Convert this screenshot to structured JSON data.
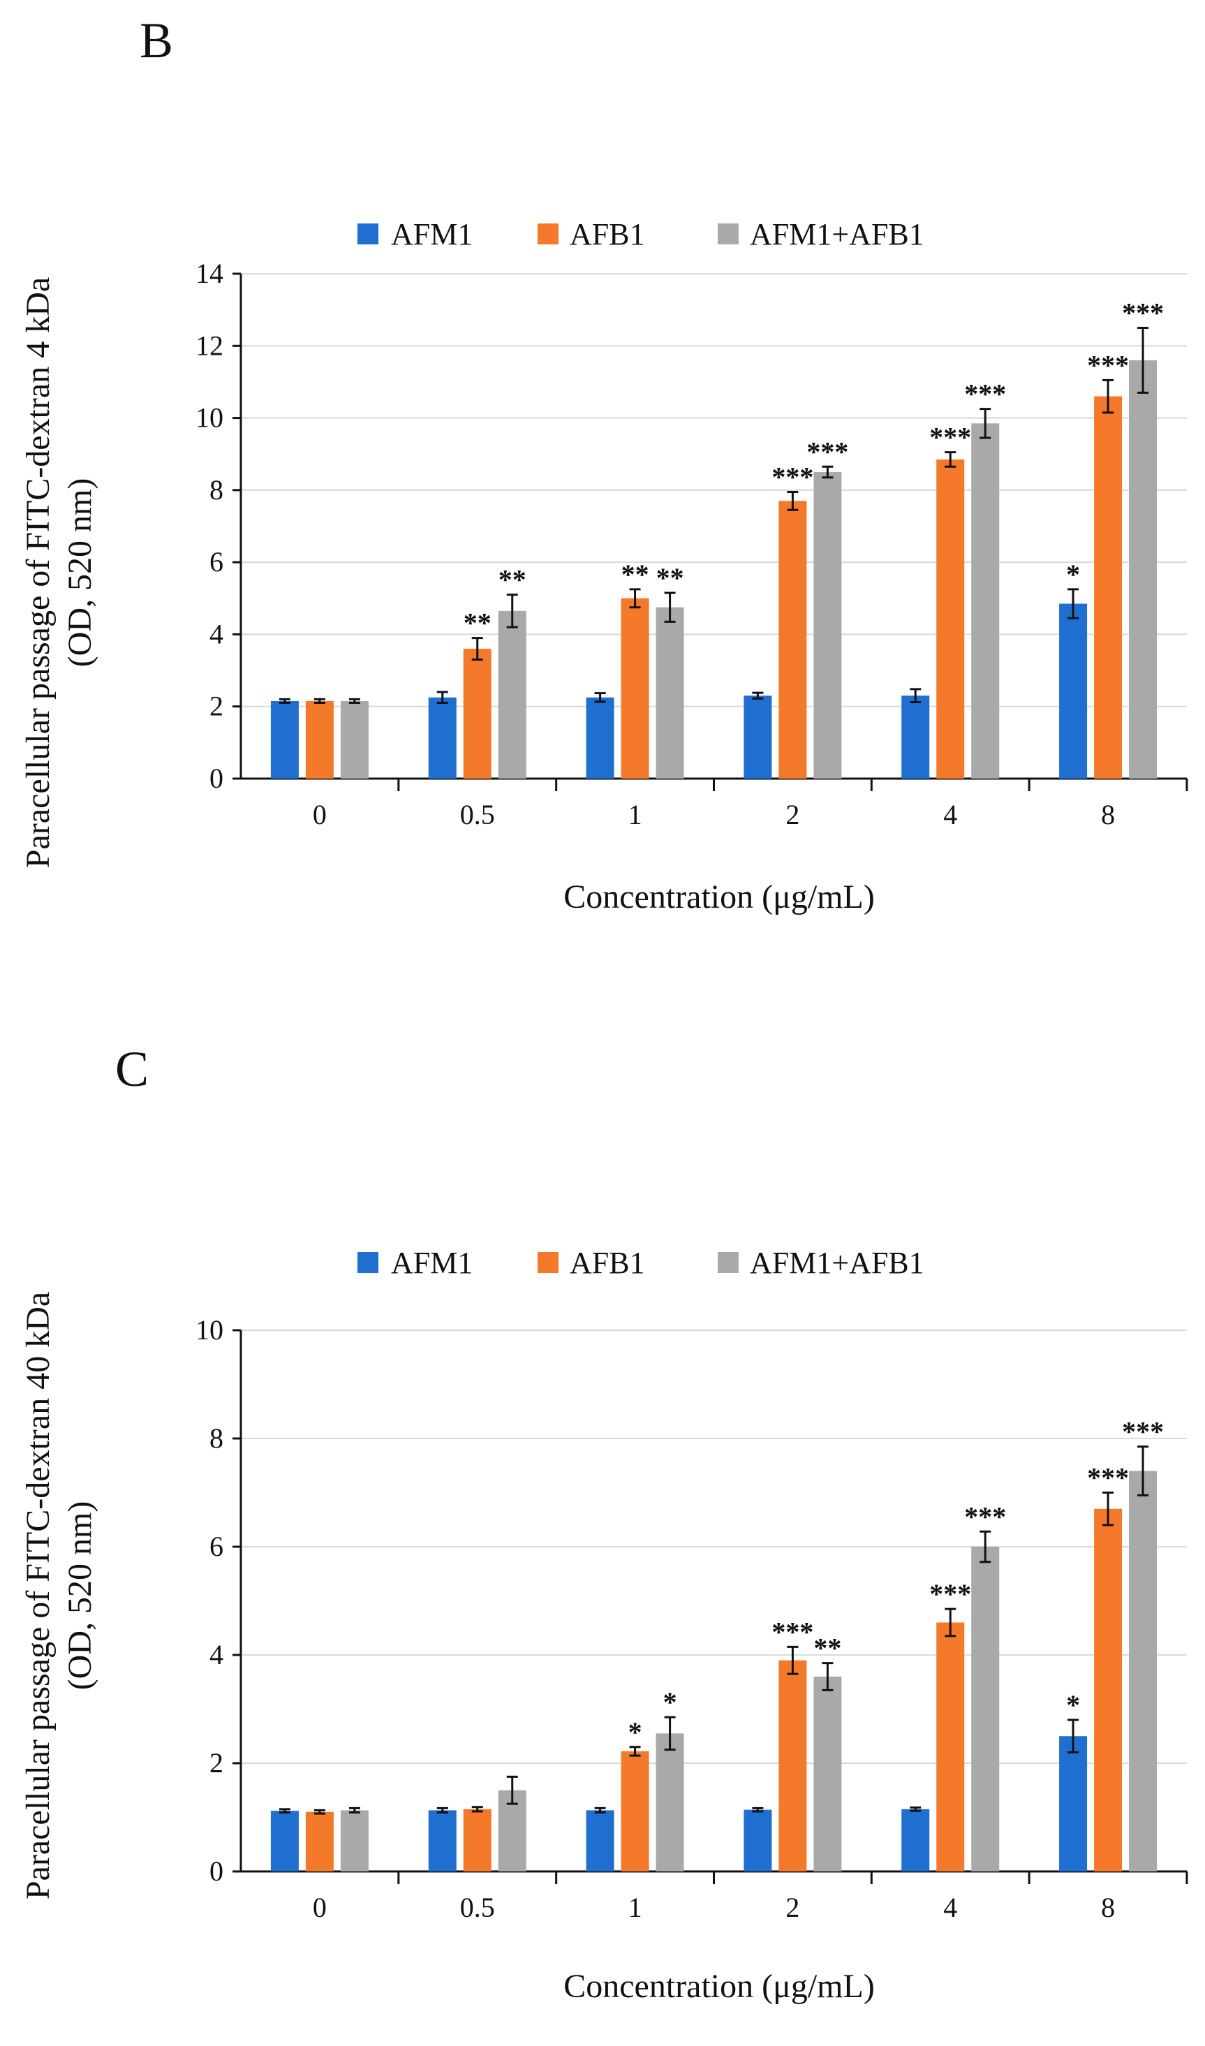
{
  "colors": {
    "AFM1": "#1f6fd1",
    "AFB1": "#f5792a",
    "AFM1+AFB1": "#a9a9a9"
  },
  "chart_data": [
    {
      "type": "bar",
      "panel_label": "B",
      "title": "",
      "legend": [
        "AFM1",
        "AFB1",
        "AFM1+AFB1"
      ],
      "legend_position": "top",
      "categories": [
        "0",
        "0.5",
        "1",
        "2",
        "4",
        "8"
      ],
      "xlabel": "Concentration  (μg/mL)",
      "ylabel_line1": "Paracellular  passage  of FITC-dextran  4 kDa",
      "ylabel_line2": "(OD, 520 nm)",
      "ylim": [
        0,
        14
      ],
      "yticks": [
        "0",
        "2",
        "4",
        "6",
        "8",
        "10",
        "12",
        "14"
      ],
      "grid": true,
      "series": [
        {
          "name": "AFM1",
          "values": [
            2.15,
            2.25,
            2.25,
            2.3,
            2.3,
            4.85
          ],
          "errors": [
            0.05,
            0.15,
            0.12,
            0.08,
            0.18,
            0.4
          ],
          "significance": [
            "",
            "",
            "",
            "",
            "",
            "*"
          ]
        },
        {
          "name": "AFB1",
          "values": [
            2.15,
            3.6,
            5.0,
            7.7,
            8.85,
            10.6
          ],
          "errors": [
            0.05,
            0.3,
            0.25,
            0.25,
            0.2,
            0.45
          ],
          "significance": [
            "",
            "**",
            "**",
            "***",
            "***",
            "***"
          ]
        },
        {
          "name": "AFM1+AFB1",
          "values": [
            2.15,
            4.65,
            4.75,
            8.5,
            9.85,
            11.6
          ],
          "errors": [
            0.05,
            0.45,
            0.4,
            0.15,
            0.4,
            0.9
          ],
          "significance": [
            "",
            "**",
            "**",
            "***",
            "***",
            "***"
          ]
        }
      ]
    },
    {
      "type": "bar",
      "panel_label": "C",
      "title": "",
      "legend": [
        "AFM1",
        "AFB1",
        "AFM1+AFB1"
      ],
      "legend_position": "top",
      "categories": [
        "0",
        "0.5",
        "1",
        "2",
        "4",
        "8"
      ],
      "xlabel": "Concentration  (μg/mL)",
      "ylabel_line1": "Paracellular  passage  of FITC-dextran  40 kDa",
      "ylabel_line2": "(OD, 520 nm)",
      "ylim": [
        0,
        10
      ],
      "yticks": [
        "0",
        "2",
        "4",
        "6",
        "8",
        "10"
      ],
      "grid": true,
      "series": [
        {
          "name": "AFM1",
          "values": [
            1.12,
            1.13,
            1.13,
            1.14,
            1.15,
            2.5
          ],
          "errors": [
            0.03,
            0.04,
            0.04,
            0.03,
            0.03,
            0.3
          ],
          "significance": [
            "",
            "",
            "",
            "",
            "",
            "*"
          ]
        },
        {
          "name": "AFB1",
          "values": [
            1.1,
            1.15,
            2.22,
            3.9,
            4.6,
            6.7
          ],
          "errors": [
            0.03,
            0.04,
            0.08,
            0.25,
            0.25,
            0.3
          ],
          "significance": [
            "",
            "",
            "*",
            "***",
            "***",
            "***"
          ]
        },
        {
          "name": "AFM1+AFB1",
          "values": [
            1.13,
            1.5,
            2.55,
            3.6,
            6.0,
            7.4
          ],
          "errors": [
            0.04,
            0.25,
            0.3,
            0.25,
            0.28,
            0.45
          ],
          "significance": [
            "",
            "",
            "*",
            "**",
            "***",
            "***"
          ]
        }
      ]
    }
  ]
}
